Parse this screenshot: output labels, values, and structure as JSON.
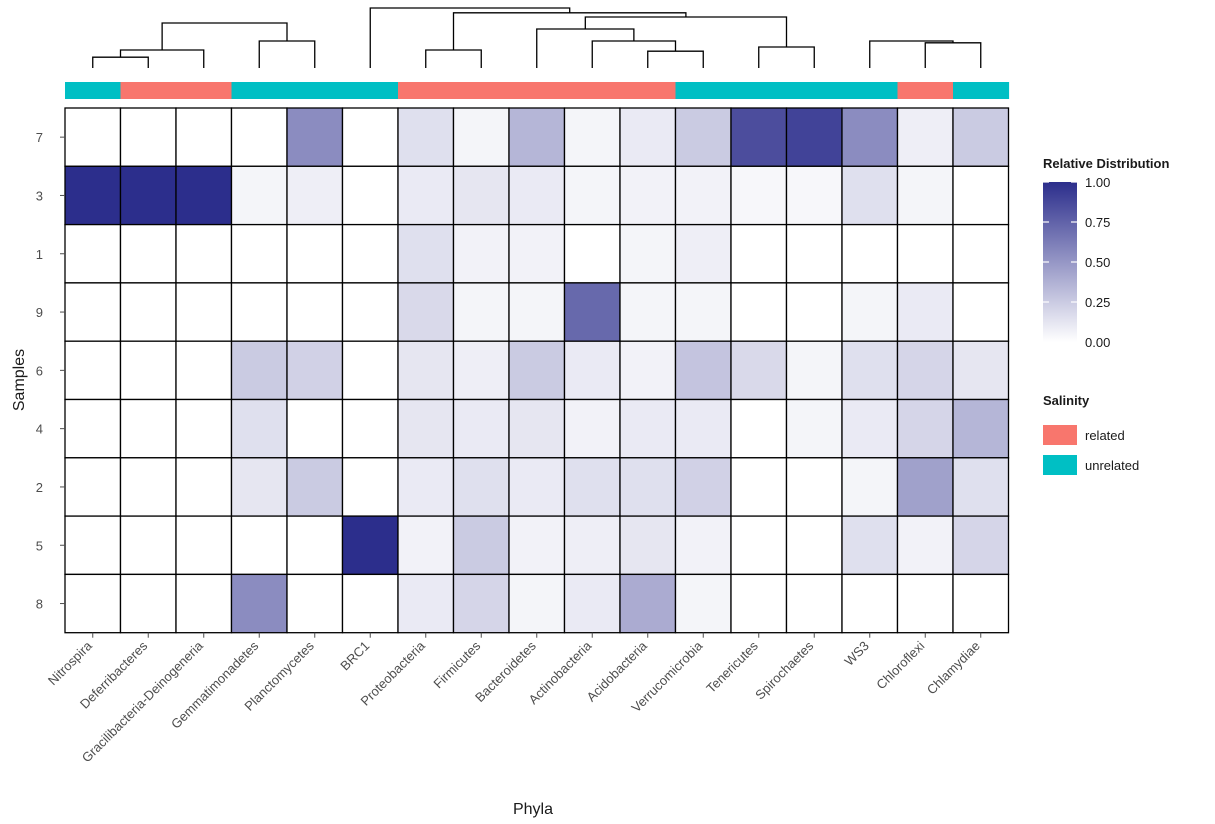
{
  "chart_data": {
    "type": "heatmap",
    "xlabel": "Phyla",
    "ylabel": "Samples",
    "x": [
      "Nitrospira",
      "Deferribacteres",
      "Gracilibacteria-Deinogeneria",
      "Gemmatimonadetes",
      "Planctomycetes",
      "BRC1",
      "Proteobacteria",
      "Firmicutes",
      "Bacteroidetes",
      "Actinobacteria",
      "Acidobacteria",
      "Verrucomicrobia",
      "Tenericutes",
      "Spirochaetes",
      "WS3",
      "Chloroflexi",
      "Chlamydiae"
    ],
    "y": [
      "7",
      "3",
      "1",
      "9",
      "6",
      "4",
      "2",
      "5",
      "8"
    ],
    "values": [
      [
        0,
        0,
        0,
        0,
        0.55,
        0,
        0.15,
        0.05,
        0.35,
        0.05,
        0.1,
        0.25,
        0.85,
        0.9,
        0.55,
        0.08,
        0.25
      ],
      [
        1.0,
        1.0,
        1.0,
        0.05,
        0.08,
        0,
        0.1,
        0.12,
        0.1,
        0.05,
        0.06,
        0.06,
        0.04,
        0.04,
        0.15,
        0.05,
        0
      ],
      [
        0,
        0,
        0,
        0,
        0,
        0,
        0.15,
        0.06,
        0.06,
        0,
        0.05,
        0.08,
        0,
        0,
        0,
        0,
        0
      ],
      [
        0,
        0,
        0,
        0,
        0,
        0,
        0.18,
        0.05,
        0.05,
        0.72,
        0.05,
        0.05,
        0,
        0,
        0.05,
        0.1,
        0
      ],
      [
        0,
        0,
        0,
        0.25,
        0.22,
        0,
        0.12,
        0.08,
        0.25,
        0.1,
        0.06,
        0.28,
        0.18,
        0.05,
        0.15,
        0.2,
        0.12
      ],
      [
        0,
        0,
        0,
        0.15,
        0,
        0,
        0.12,
        0.1,
        0.12,
        0.06,
        0.1,
        0.1,
        0,
        0.05,
        0.1,
        0.2,
        0.35
      ],
      [
        0,
        0,
        0,
        0.12,
        0.25,
        0,
        0.1,
        0.15,
        0.1,
        0.15,
        0.15,
        0.22,
        0,
        0,
        0.05,
        0.45,
        0.15
      ],
      [
        0,
        0,
        0,
        0,
        0,
        1.0,
        0.06,
        0.25,
        0.06,
        0.08,
        0.12,
        0.06,
        0,
        0,
        0.15,
        0.06,
        0.2
      ],
      [
        0,
        0,
        0,
        0.55,
        0,
        0,
        0.1,
        0.2,
        0.05,
        0.1,
        0.4,
        0.05,
        0,
        0,
        0,
        0,
        0
      ]
    ],
    "annotation": {
      "title": "Salinity",
      "levels": [
        "related",
        "unrelated"
      ],
      "colors": {
        "related": "#F8766D",
        "unrelated": "#00BFC4"
      },
      "assignment": [
        "unrelated",
        "related",
        "related",
        "unrelated",
        "unrelated",
        "unrelated",
        "related",
        "related",
        "related",
        "related",
        "related",
        "unrelated",
        "unrelated",
        "unrelated",
        "unrelated",
        "related",
        "unrelated"
      ]
    },
    "colorbar": {
      "title": "Relative Distribution",
      "ticks": [
        {
          "value": 0,
          "label": "0.00"
        },
        {
          "value": 0.25,
          "label": "0.25"
        },
        {
          "value": 0.5,
          "label": "0.50"
        },
        {
          "value": 0.75,
          "label": "0.75"
        },
        {
          "value": 1.0,
          "label": "1.00"
        }
      ],
      "low_color": "#FFFFFF",
      "high_color": "#2C2E8C",
      "range": [
        0,
        1
      ]
    },
    "dendrogram": [
      [
        0,
        1,
        0.18
      ],
      [
        17,
        2,
        0.3
      ],
      [
        3,
        4,
        0.45
      ],
      [
        18,
        19,
        0.75
      ],
      [
        6,
        7,
        0.3
      ],
      [
        10,
        11,
        0.28
      ],
      [
        9,
        22,
        0.45
      ],
      [
        8,
        23,
        0.65
      ],
      [
        12,
        13,
        0.35
      ],
      [
        15,
        16,
        0.42
      ],
      [
        14,
        26,
        0.45
      ],
      [
        24,
        25,
        0.85
      ],
      [
        21,
        28,
        0.92
      ],
      [
        5,
        29,
        1.0
      ]
    ]
  }
}
